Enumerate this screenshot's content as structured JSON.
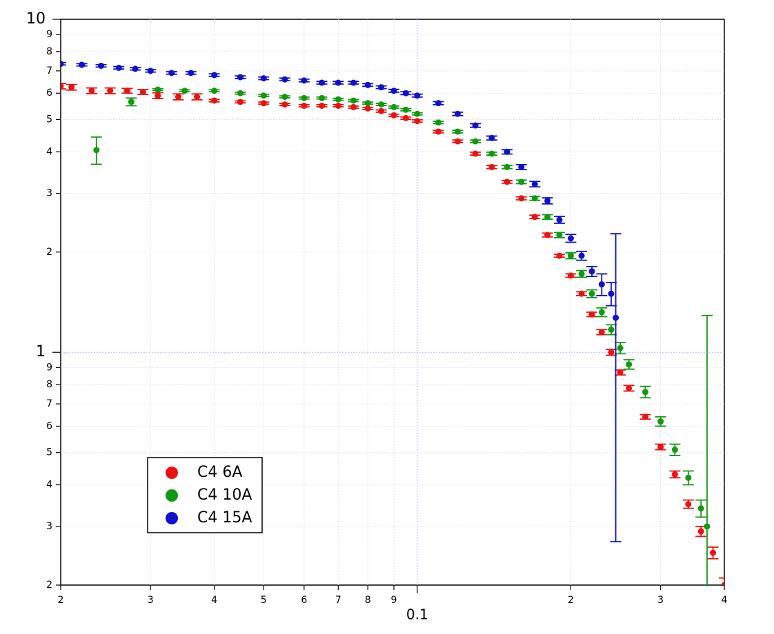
{
  "chart_data": {
    "type": "scatter",
    "log_x": true,
    "log_y": true,
    "grid": true,
    "legend": "lower left",
    "xlim": [
      0.02,
      0.4
    ],
    "ylim": [
      0.2,
      10
    ],
    "xticks": [
      {
        "value": 0.02,
        "label": "2"
      },
      {
        "value": 0.03,
        "label": "3"
      },
      {
        "value": 0.04,
        "label": "4"
      },
      {
        "value": 0.05,
        "label": "5"
      },
      {
        "value": 0.06,
        "label": "6"
      },
      {
        "value": 0.07,
        "label": "7"
      },
      {
        "value": 0.08,
        "label": "8"
      },
      {
        "value": 0.09,
        "label": "9"
      },
      0.1,
      {
        "value": 0.2,
        "label": "2"
      },
      {
        "value": 0.3,
        "label": "3"
      },
      {
        "value": 0.4,
        "label": "4"
      }
    ],
    "yticks": [
      {
        "value": 0.2,
        "label": "2"
      },
      {
        "value": 0.3,
        "label": "3"
      },
      {
        "value": 0.4,
        "label": "4"
      },
      {
        "value": 0.5,
        "label": "5"
      },
      {
        "value": 0.6,
        "label": "6"
      },
      {
        "value": 0.7,
        "label": "7"
      },
      {
        "value": 0.8,
        "label": "8"
      },
      {
        "value": 0.9,
        "label": "9"
      },
      1,
      {
        "value": 2,
        "label": "2"
      },
      {
        "value": 3,
        "label": "3"
      },
      {
        "value": 4,
        "label": "4"
      },
      {
        "value": 5,
        "label": "5"
      },
      {
        "value": 6,
        "label": "6"
      },
      {
        "value": 7,
        "label": "7"
      },
      {
        "value": 8,
        "label": "8"
      },
      {
        "value": 9,
        "label": "9"
      },
      10
    ],
    "series": [
      {
        "name": "C4 6A",
        "color": "#ee1111",
        "x": [
          0.02,
          0.021,
          0.023,
          0.025,
          0.027,
          0.029,
          0.031,
          0.034,
          0.037,
          0.04,
          0.045,
          0.05,
          0.055,
          0.06,
          0.065,
          0.07,
          0.075,
          0.08,
          0.085,
          0.09,
          0.095,
          0.1,
          0.11,
          0.12,
          0.13,
          0.14,
          0.15,
          0.16,
          0.17,
          0.18,
          0.19,
          0.2,
          0.21,
          0.22,
          0.23,
          0.24,
          0.25,
          0.26,
          0.28,
          0.3,
          0.32,
          0.34,
          0.36,
          0.38,
          0.4
        ],
        "values": [
          6.3,
          6.25,
          6.1,
          6.1,
          6.1,
          6.05,
          5.9,
          5.85,
          5.85,
          5.7,
          5.65,
          5.6,
          5.55,
          5.5,
          5.5,
          5.5,
          5.45,
          5.4,
          5.3,
          5.15,
          5.05,
          4.95,
          4.6,
          4.3,
          3.95,
          3.6,
          3.25,
          2.9,
          2.55,
          2.25,
          1.95,
          1.7,
          1.5,
          1.3,
          1.15,
          1.0,
          0.87,
          0.78,
          0.64,
          0.52,
          0.43,
          0.35,
          0.29,
          0.25,
          0.2
        ],
        "errors": [
          0.12,
          0.12,
          0.12,
          0.12,
          0.1,
          0.1,
          0.12,
          0.12,
          0.12,
          0.05,
          0.04,
          0.04,
          0.04,
          0.04,
          0.04,
          0.04,
          0.04,
          0.04,
          0.04,
          0.04,
          0.04,
          0.04,
          0.04,
          0.04,
          0.04,
          0.04,
          0.03,
          0.03,
          0.03,
          0.03,
          0.02,
          0.02,
          0.02,
          0.02,
          0.02,
          0.02,
          0.015,
          0.015,
          0.01,
          0.01,
          0.01,
          0.01,
          0.01,
          0.01,
          0.01
        ]
      },
      {
        "name": "C4 10A",
        "color": "#119911",
        "x": [
          0.0235,
          0.0275,
          0.031,
          0.035,
          0.04,
          0.045,
          0.05,
          0.055,
          0.06,
          0.065,
          0.07,
          0.075,
          0.08,
          0.085,
          0.09,
          0.095,
          0.1,
          0.11,
          0.12,
          0.13,
          0.14,
          0.15,
          0.16,
          0.17,
          0.18,
          0.19,
          0.2,
          0.21,
          0.22,
          0.23,
          0.24,
          0.25,
          0.26,
          0.28,
          0.3,
          0.32,
          0.34,
          0.36,
          0.37
        ],
        "values": [
          4.05,
          5.65,
          6.15,
          6.1,
          6.1,
          6.0,
          5.9,
          5.85,
          5.8,
          5.8,
          5.75,
          5.7,
          5.6,
          5.55,
          5.45,
          5.35,
          5.2,
          4.9,
          4.6,
          4.3,
          3.95,
          3.6,
          3.25,
          2.9,
          2.55,
          2.25,
          1.95,
          1.72,
          1.5,
          1.32,
          1.17,
          1.03,
          0.92,
          0.76,
          0.62,
          0.51,
          0.42,
          0.34,
          0.3
        ],
        "errors": [
          0.38,
          0.15,
          0.04,
          0.04,
          0.04,
          0.04,
          0.04,
          0.04,
          0.04,
          0.04,
          0.04,
          0.04,
          0.04,
          0.04,
          0.04,
          0.04,
          0.04,
          0.04,
          0.04,
          0.04,
          0.04,
          0.04,
          0.04,
          0.04,
          0.04,
          0.04,
          0.04,
          0.04,
          0.04,
          0.04,
          0.04,
          0.04,
          0.03,
          0.03,
          0.02,
          0.02,
          0.02,
          0.02,
          0.99
        ]
      },
      {
        "name": "C4 15A",
        "color": "#1111cc",
        "x": [
          0.02,
          0.022,
          0.024,
          0.026,
          0.028,
          0.03,
          0.033,
          0.036,
          0.04,
          0.045,
          0.05,
          0.055,
          0.06,
          0.065,
          0.07,
          0.075,
          0.08,
          0.085,
          0.09,
          0.095,
          0.1,
          0.11,
          0.12,
          0.13,
          0.14,
          0.15,
          0.16,
          0.17,
          0.18,
          0.19,
          0.2,
          0.21,
          0.22,
          0.23,
          0.24,
          0.245
        ],
        "values": [
          7.35,
          7.3,
          7.25,
          7.15,
          7.1,
          7.0,
          6.9,
          6.9,
          6.8,
          6.7,
          6.65,
          6.6,
          6.55,
          6.45,
          6.45,
          6.45,
          6.35,
          6.25,
          6.1,
          6.0,
          5.9,
          5.6,
          5.2,
          4.8,
          4.4,
          4.0,
          3.6,
          3.2,
          2.85,
          2.5,
          2.2,
          1.95,
          1.75,
          1.6,
          1.5,
          1.27
        ],
        "errors": [
          0.06,
          0.06,
          0.06,
          0.06,
          0.06,
          0.06,
          0.06,
          0.06,
          0.06,
          0.06,
          0.06,
          0.06,
          0.06,
          0.06,
          0.06,
          0.06,
          0.06,
          0.06,
          0.06,
          0.06,
          0.06,
          0.06,
          0.06,
          0.06,
          0.06,
          0.06,
          0.06,
          0.06,
          0.06,
          0.06,
          0.06,
          0.06,
          0.06,
          0.12,
          0.12,
          1.0
        ]
      }
    ]
  }
}
